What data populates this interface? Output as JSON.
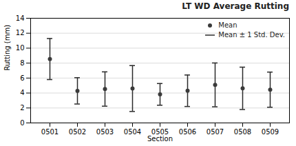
{
  "chart_data": {
    "type": "scatter",
    "title": "LT WD Average Rutting",
    "xlabel": "Section",
    "ylabel": "Rutting (mm)",
    "categories": [
      "0501",
      "0502",
      "0503",
      "0504",
      "0505",
      "0506",
      "0507",
      "0508",
      "0509"
    ],
    "series": [
      {
        "name": "Mean",
        "type": "scatter",
        "color": "#3a3a3a",
        "values": [
          8.54,
          4.29,
          4.53,
          4.6,
          3.82,
          4.3,
          5.09,
          4.63,
          4.45
        ]
      },
      {
        "name": "Mean ± 1 Std. Dev.",
        "type": "errorbar",
        "color": "#2a2a2a",
        "low": [
          5.8,
          2.53,
          2.24,
          1.53,
          2.37,
          2.2,
          2.16,
          1.79,
          2.1
        ],
        "high": [
          11.29,
          6.05,
          6.83,
          7.67,
          5.27,
          6.41,
          8.02,
          7.46,
          6.8
        ]
      }
    ],
    "ylim": [
      0,
      14
    ],
    "yticks": [
      0,
      2,
      4,
      6,
      8,
      10,
      12,
      14
    ],
    "grid": true,
    "legend": "upper right"
  }
}
